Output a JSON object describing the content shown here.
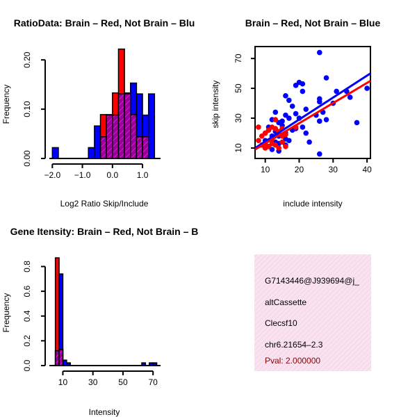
{
  "colors": {
    "red": "#ff0000",
    "blue": "#0000ff",
    "purple": "#990099",
    "info_bg": "#f7d7ec",
    "pval": "#8b0000"
  },
  "chart_data": [
    {
      "type": "bar",
      "title": "RatioData: Brain – Red, Not Brain – Blu",
      "xlabel": "Log2 Ratio Skip/Include",
      "ylabel": "Frequency",
      "xlim": [
        -2.1,
        1.6
      ],
      "ylim": [
        0,
        0.22
      ],
      "xticks": [
        -2.0,
        -1.0,
        0.0,
        1.0
      ],
      "xtick_labels": [
        "−2.0",
        "−1.0",
        "0.0",
        "1.0"
      ],
      "yticks": [
        0.0,
        0.1,
        0.2
      ],
      "ytick_labels": [
        "0.00",
        "0.10",
        "0.20"
      ],
      "bin_width": 0.2,
      "blue_bins": [
        {
          "x": -2.0,
          "h": 0.022
        },
        {
          "x": -0.8,
          "h": 0.022
        },
        {
          "x": -0.6,
          "h": 0.066
        },
        {
          "x": -0.4,
          "h": 0.044
        },
        {
          "x": -0.2,
          "h": 0.088
        },
        {
          "x": 0.0,
          "h": 0.088
        },
        {
          "x": 0.2,
          "h": 0.131
        },
        {
          "x": 0.4,
          "h": 0.131
        },
        {
          "x": 0.6,
          "h": 0.153
        },
        {
          "x": 0.8,
          "h": 0.131
        },
        {
          "x": 1.0,
          "h": 0.088
        },
        {
          "x": 1.2,
          "h": 0.131
        }
      ],
      "red_bins": [
        {
          "x": -0.4,
          "h": 0.089
        },
        {
          "x": -0.2,
          "h": 0.089
        },
        {
          "x": 0.0,
          "h": 0.133
        },
        {
          "x": 0.2,
          "h": 0.222
        },
        {
          "x": 0.4,
          "h": 0.133
        },
        {
          "x": 0.6,
          "h": 0.089
        },
        {
          "x": 0.8,
          "h": 0.044
        },
        {
          "x": 1.0,
          "h": 0.044
        }
      ]
    },
    {
      "type": "scatter",
      "title": "Brain – Red, Not Brain – Blue",
      "xlabel": "include intensity",
      "ylabel": "skip intensity",
      "xlim": [
        7,
        41
      ],
      "ylim": [
        3,
        78
      ],
      "xticks": [
        10,
        20,
        30,
        40
      ],
      "xtick_labels": [
        "10",
        "20",
        "30",
        "40"
      ],
      "yticks": [
        10,
        30,
        50,
        70
      ],
      "ytick_labels": [
        "10",
        "30",
        "50",
        "70"
      ],
      "blue_points": [
        [
          26,
          74
        ],
        [
          28,
          57
        ],
        [
          20,
          54
        ],
        [
          19,
          52
        ],
        [
          21,
          53
        ],
        [
          40,
          50
        ],
        [
          31,
          48
        ],
        [
          34,
          48
        ],
        [
          35,
          44
        ],
        [
          16,
          45
        ],
        [
          17,
          42
        ],
        [
          26,
          43
        ],
        [
          26,
          41
        ],
        [
          18,
          38
        ],
        [
          22,
          36
        ],
        [
          27,
          34
        ],
        [
          16,
          32
        ],
        [
          13,
          34
        ],
        [
          19,
          33
        ],
        [
          25,
          32
        ],
        [
          20,
          30
        ],
        [
          12,
          29
        ],
        [
          17,
          30
        ],
        [
          28,
          29
        ],
        [
          26,
          28
        ],
        [
          37,
          27
        ],
        [
          14,
          27
        ],
        [
          15,
          25
        ],
        [
          11,
          24
        ],
        [
          18,
          22
        ],
        [
          19,
          23
        ],
        [
          21,
          24
        ],
        [
          22,
          20
        ],
        [
          16,
          20
        ],
        [
          13,
          21
        ],
        [
          11,
          22
        ],
        [
          10,
          20
        ],
        [
          12,
          18
        ],
        [
          14,
          18
        ],
        [
          16,
          16
        ],
        [
          10,
          15
        ],
        [
          13,
          14
        ],
        [
          9,
          12
        ],
        [
          11,
          11
        ],
        [
          14,
          13
        ],
        [
          16,
          12
        ],
        [
          17,
          15
        ],
        [
          12,
          9
        ],
        [
          14,
          8
        ],
        [
          23,
          14
        ],
        [
          26,
          6
        ],
        [
          30,
          40
        ],
        [
          21,
          48
        ],
        [
          15,
          28
        ]
      ],
      "red_points": [
        [
          8,
          24
        ],
        [
          10,
          20
        ],
        [
          11,
          22
        ],
        [
          12,
          24
        ],
        [
          13,
          23
        ],
        [
          14,
          21
        ],
        [
          15,
          18
        ],
        [
          16,
          19
        ],
        [
          8,
          15
        ],
        [
          9,
          12
        ],
        [
          10,
          10
        ],
        [
          11,
          11
        ],
        [
          12,
          13
        ],
        [
          13,
          12
        ],
        [
          15,
          14
        ],
        [
          16,
          11
        ],
        [
          14,
          10
        ],
        [
          10,
          13
        ],
        [
          12,
          16
        ],
        [
          13,
          29
        ],
        [
          19,
          24
        ],
        [
          15,
          23
        ],
        [
          9,
          18
        ]
      ],
      "blue_line": {
        "x": [
          7,
          41
        ],
        "y": [
          10,
          60
        ]
      },
      "red_line": {
        "x": [
          7,
          41
        ],
        "y": [
          9,
          55
        ]
      }
    },
    {
      "type": "bar",
      "title": "Gene Itensity: Brain – Red, Not Brain – B",
      "xlabel": "Intensity",
      "ylabel": "Frequency",
      "xlim": [
        1,
        75
      ],
      "ylim": [
        0,
        0.87
      ],
      "xticks": [
        10,
        30,
        50,
        70
      ],
      "xtick_labels": [
        "10",
        "30",
        "50",
        "70"
      ],
      "yticks": [
        0.0,
        0.2,
        0.4,
        0.6,
        0.8
      ],
      "ytick_labels": [
        "0.0",
        "0.2",
        "0.4",
        "0.6",
        "0.8"
      ],
      "bin_width": 2.5,
      "blue_bins": [
        {
          "x": 5.0,
          "h": 0.12
        },
        {
          "x": 7.5,
          "h": 0.74
        },
        {
          "x": 10.0,
          "h": 0.044
        },
        {
          "x": 12.5,
          "h": 0.022
        },
        {
          "x": 62.5,
          "h": 0.022
        },
        {
          "x": 67.5,
          "h": 0.022
        },
        {
          "x": 70.0,
          "h": 0.022
        }
      ],
      "red_bins": [
        {
          "x": 5.0,
          "h": 0.87
        },
        {
          "x": 7.5,
          "h": 0.13
        }
      ]
    }
  ],
  "info_panel": {
    "event_id": "G7143446@J939694@j_",
    "event_type": "altCassette",
    "gene": "Clecsf10",
    "location": "chr6.21654–2.3",
    "pval": "Pval: 2.000000"
  }
}
